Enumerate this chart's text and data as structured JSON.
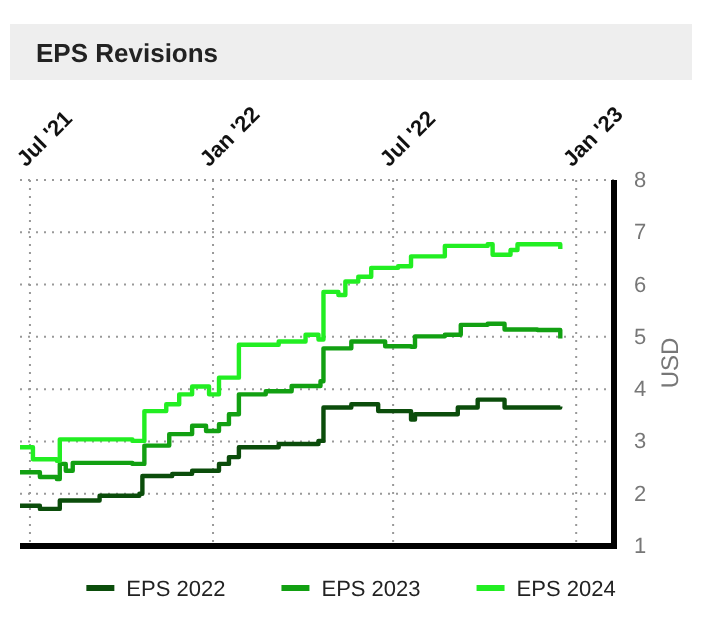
{
  "chart_data": {
    "type": "step",
    "title": "EPS Revisions",
    "ylabel": "USD",
    "xlim": [
      "2021-06-21",
      "2023-02-08"
    ],
    "xticks": [
      {
        "value": "2021-07-01",
        "label": "Jul '21"
      },
      {
        "value": "2022-01-01",
        "label": "Jan '22"
      },
      {
        "value": "2022-07-01",
        "label": "Jul '22"
      },
      {
        "value": "2023-01-01",
        "label": "Jan '23"
      }
    ],
    "ylim": [
      1,
      8
    ],
    "yticks": [
      1,
      2,
      3,
      4,
      5,
      6,
      7,
      8
    ],
    "grid": true,
    "legend": "bottom",
    "line_style": "solid",
    "marker": "none",
    "series": [
      {
        "name": "EPS 2022",
        "color": "#0b4d0b",
        "x": [
          "2021-06-21",
          "2021-07-11",
          "2021-07-31",
          "2021-09-09",
          "2021-10-19",
          "2021-10-22",
          "2021-11-21",
          "2021-12-11",
          "2022-01-07",
          "2022-01-17",
          "2022-01-27",
          "2022-03-08",
          "2022-04-17",
          "2022-04-22",
          "2022-05-20",
          "2022-06-16",
          "2022-07-19",
          "2022-07-23",
          "2022-09-04",
          "2022-09-24",
          "2022-10-17",
          "2022-10-21",
          "2022-12-16"
        ],
        "values": [
          1.77,
          1.71,
          1.87,
          1.96,
          2.0,
          2.34,
          2.38,
          2.44,
          2.57,
          2.7,
          2.89,
          2.95,
          3.01,
          3.65,
          3.71,
          3.58,
          3.42,
          3.52,
          3.65,
          3.8,
          3.8,
          3.65,
          3.67
        ]
      },
      {
        "name": "EPS 2023",
        "color": "#12a012",
        "x": [
          "2021-06-21",
          "2021-07-11",
          "2021-07-28",
          "2021-07-31",
          "2021-08-06",
          "2021-08-13",
          "2021-10-12",
          "2021-10-24",
          "2021-11-18",
          "2021-12-11",
          "2021-12-25",
          "2022-01-07",
          "2022-01-17",
          "2022-01-27",
          "2022-02-23",
          "2022-03-21",
          "2022-04-19",
          "2022-04-22",
          "2022-05-20",
          "2022-06-23",
          "2022-07-19",
          "2022-07-23",
          "2022-08-22",
          "2022-09-07",
          "2022-10-04",
          "2022-10-21",
          "2022-11-23",
          "2022-12-16"
        ],
        "values": [
          2.41,
          2.32,
          2.28,
          2.57,
          2.44,
          2.59,
          2.57,
          2.92,
          3.14,
          3.3,
          3.2,
          3.33,
          3.52,
          3.9,
          3.96,
          4.06,
          4.15,
          4.78,
          4.91,
          4.82,
          4.81,
          5.01,
          5.04,
          5.23,
          5.25,
          5.14,
          5.13,
          4.97
        ]
      },
      {
        "name": "EPS 2024",
        "color": "#22ee22",
        "x": [
          "2021-06-21",
          "2021-07-04",
          "2021-07-28",
          "2021-07-31",
          "2021-10-12",
          "2021-10-24",
          "2021-11-15",
          "2021-11-28",
          "2021-12-11",
          "2021-12-28",
          "2022-01-07",
          "2022-01-27",
          "2022-03-08",
          "2022-04-04",
          "2022-04-17",
          "2022-04-22",
          "2022-05-07",
          "2022-05-14",
          "2022-05-27",
          "2022-06-09",
          "2022-07-06",
          "2022-07-19",
          "2022-08-22",
          "2022-10-04",
          "2022-10-09",
          "2022-10-27",
          "2022-11-03",
          "2022-12-16"
        ],
        "values": [
          2.89,
          2.66,
          2.63,
          3.04,
          3.01,
          3.58,
          3.71,
          3.9,
          4.05,
          3.9,
          4.22,
          4.85,
          4.91,
          5.04,
          4.95,
          5.86,
          5.8,
          6.06,
          6.15,
          6.32,
          6.35,
          6.54,
          6.74,
          6.77,
          6.57,
          6.66,
          6.77,
          6.68
        ]
      }
    ]
  }
}
